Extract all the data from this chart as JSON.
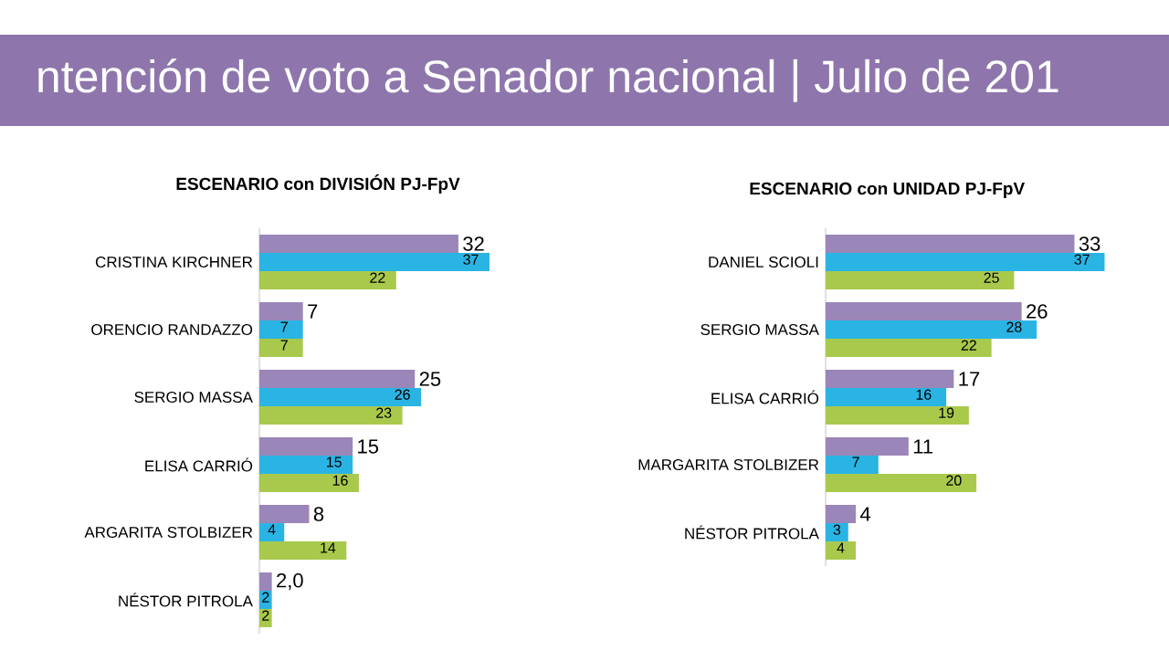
{
  "chart_data": [
    {
      "type": "bar",
      "orientation": "horizontal",
      "title": "ESCENARIO con DIVISIÓN PJ-FpV",
      "annotations": [
        "ntención de voto a Senador nacional | Julio de 201"
      ],
      "tick_labels": "y",
      "categories": [
        "CRISTINA KIRCHNER",
        "ORENCIO RANDAZZO",
        "SERGIO MASSA",
        "ELISA CARRIÓ",
        "ARGARITA STOLBIZER",
        "NÉSTOR PITROLA"
      ],
      "series": [
        {
          "color": "#9a86b8",
          "values": [
            32,
            7,
            25,
            15,
            8,
            2.0
          ],
          "value_labels": [
            "32",
            "7",
            "25",
            "15",
            "8",
            "2,0"
          ]
        },
        {
          "color": "#2ab4e4",
          "values": [
            37,
            7,
            26,
            15,
            4,
            2
          ],
          "value_labels": [
            "37",
            "7",
            "26",
            "15",
            "4",
            "2"
          ]
        },
        {
          "color": "#a9c94c",
          "values": [
            22,
            7,
            23,
            16,
            14,
            2
          ],
          "value_labels": [
            "22",
            "7",
            "23",
            "16",
            "14",
            "2"
          ]
        }
      ]
    },
    {
      "type": "bar",
      "orientation": "horizontal",
      "title": "ESCENARIO con UNIDAD PJ-FpV",
      "tick_labels": "y",
      "categories": [
        "DANIEL SCIOLI",
        "SERGIO MASSA",
        "ELISA CARRIÓ",
        "MARGARITA STOLBIZER",
        "NÉSTOR PITROLA"
      ],
      "series": [
        {
          "color": "#9a86b8",
          "values": [
            33,
            26,
            17,
            11,
            4
          ],
          "value_labels": [
            "33",
            "26",
            "17",
            "11",
            "4"
          ]
        },
        {
          "color": "#2ab4e4",
          "values": [
            37,
            28,
            16,
            7,
            3
          ],
          "value_labels": [
            "37",
            "28",
            "16",
            "7",
            "3"
          ]
        },
        {
          "color": "#a9c94c",
          "values": [
            25,
            22,
            19,
            20,
            4
          ],
          "value_labels": [
            "25",
            "22",
            "19",
            "20",
            "4"
          ]
        }
      ]
    }
  ]
}
